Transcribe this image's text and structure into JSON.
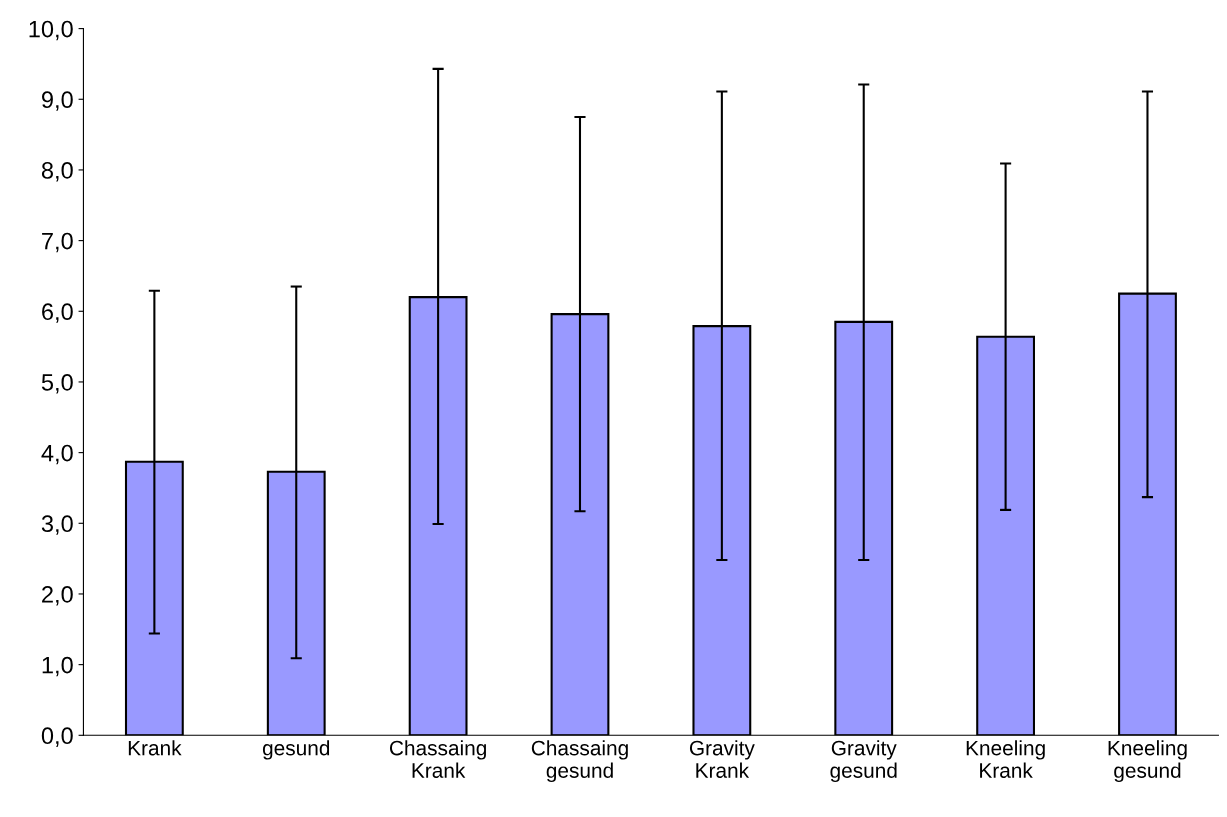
{
  "chart_data": {
    "type": "bar",
    "categories": [
      "Krank",
      "gesund",
      "Chassaing\nKrank",
      "Chassaing\ngesund",
      "Gravity\nKrank",
      "Gravity\ngesund",
      "Kneeling\nKrank",
      "Kneeling\ngesund"
    ],
    "values": [
      3.87,
      3.73,
      6.2,
      5.96,
      5.79,
      5.85,
      5.64,
      6.25
    ],
    "errors": [
      [
        1.44,
        6.29
      ],
      [
        1.09,
        6.35
      ],
      [
        2.99,
        9.43
      ],
      [
        3.17,
        8.75
      ],
      [
        2.48,
        9.11
      ],
      [
        2.48,
        9.21
      ],
      [
        3.19,
        8.09
      ],
      [
        3.37,
        9.11
      ]
    ],
    "color": "#9999ff",
    "ylim": [
      0,
      10
    ],
    "yticks": [
      {
        "value": 0,
        "label": "0,0"
      },
      {
        "value": 1,
        "label": "1,0"
      },
      {
        "value": 2,
        "label": "2,0"
      },
      {
        "value": 3,
        "label": "3,0"
      },
      {
        "value": 4,
        "label": "4,0"
      },
      {
        "value": 5,
        "label": "5,0"
      },
      {
        "value": 6,
        "label": "6,0"
      },
      {
        "value": 7,
        "label": "7,0"
      },
      {
        "value": 8,
        "label": "8,0"
      },
      {
        "value": 9,
        "label": "9,0"
      },
      {
        "value": 10,
        "label": "10,0"
      }
    ],
    "grid": false
  }
}
